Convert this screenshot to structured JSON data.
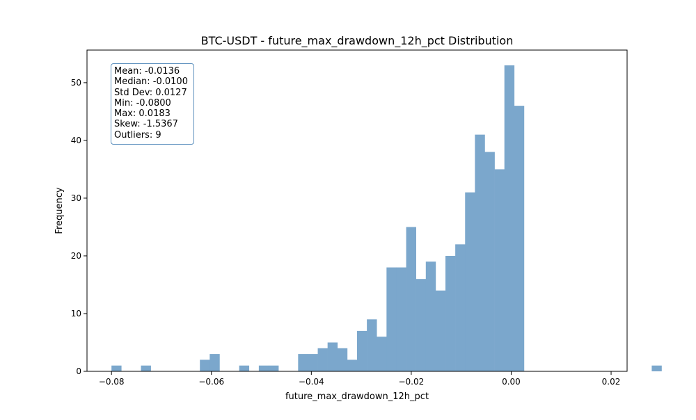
{
  "chart_data": {
    "type": "bar",
    "title": "BTC-USDT - future_max_drawdown_12h_pct Distribution",
    "xlabel": "future_max_drawdown_12h_pct",
    "ylabel": "Frequency",
    "xlim": [
      -0.0849,
      0.0232
    ],
    "ylim": [
      0,
      55.65
    ],
    "xticks": [
      -0.08,
      -0.06,
      -0.04,
      -0.02,
      0.0,
      0.02
    ],
    "xtick_labels": [
      "−0.08",
      "−0.06",
      "−0.04",
      "−0.02",
      "0.00",
      "0.02"
    ],
    "yticks": [
      0,
      10,
      20,
      30,
      40,
      50
    ],
    "ytick_labels": [
      "0",
      "10",
      "20",
      "30",
      "40",
      "50"
    ],
    "grid": false,
    "bar_color": "#7ba7cc",
    "bin_start": -0.08,
    "bin_width": 0.001966,
    "values": [
      1,
      0,
      0,
      1,
      0,
      0,
      0,
      0,
      0,
      2,
      3,
      0,
      0,
      1,
      0,
      1,
      1,
      0,
      0,
      3,
      3,
      4,
      5,
      4,
      2,
      7,
      9,
      6,
      18,
      18,
      25,
      16,
      19,
      14,
      20,
      22,
      31,
      41,
      38,
      35,
      53,
      46,
      0,
      0,
      0,
      0,
      0,
      0,
      0,
      0,
      0,
      0,
      0,
      0,
      0,
      1
    ],
    "stats_box": [
      "Mean: -0.0136",
      "Median: -0.0100",
      "Std Dev: 0.0127",
      "Min: -0.0800",
      "Max: 0.0183",
      "Skew: -1.5367",
      "Outliers: 9"
    ]
  }
}
